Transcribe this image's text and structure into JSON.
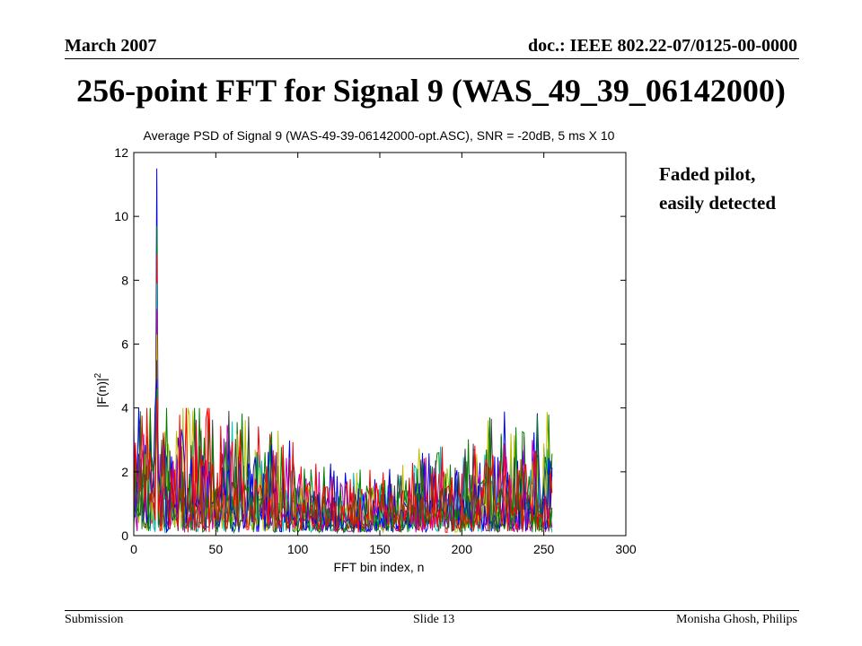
{
  "header": {
    "date": "March 2007",
    "doc": "doc.: IEEE 802.22-07/0125-00-0000"
  },
  "slide_title": "256-point FFT for Signal 9 (WAS_49_39_06142000)",
  "annotation": {
    "line1": "Faded pilot,",
    "line2": "easily detected"
  },
  "footer": {
    "left": "Submission",
    "center": "Slide 13",
    "right": "Monisha Ghosh, Philips"
  },
  "colors": [
    "#0000ff",
    "#008000",
    "#ff0000",
    "#00bfbf",
    "#bf00bf",
    "#bfbf00",
    "#404040"
  ],
  "chart_data": {
    "type": "line",
    "title": "Average PSD of Signal 9 (WAS-49-39-06142000-opt.ASC), SNR = -20dB, 5 ms X 10",
    "xlabel": "FFT bin index, n",
    "ylabel": "|F(n)|2",
    "xlim": [
      0,
      300
    ],
    "ylim": [
      0,
      12
    ],
    "xticks": [
      0,
      50,
      100,
      150,
      200,
      250,
      300
    ],
    "yticks": [
      0,
      2,
      4,
      6,
      8,
      10,
      12
    ],
    "grid": false,
    "n_bins": 256,
    "n_series": 10,
    "pilot_bin": 14,
    "pilot_peak_max": 11.5,
    "pilot_peak_values": [
      11.5,
      9.7,
      8.8,
      7.9,
      7.1,
      6.3,
      5.5,
      4.9,
      4.6,
      4.3
    ],
    "noise_envelope": [
      {
        "x": 0,
        "y": 1.6
      },
      {
        "x": 50,
        "y": 1.4
      },
      {
        "x": 100,
        "y": 0.9
      },
      {
        "x": 130,
        "y": 0.6
      },
      {
        "x": 160,
        "y": 0.7
      },
      {
        "x": 200,
        "y": 1.2
      },
      {
        "x": 255,
        "y": 1.4
      }
    ]
  }
}
